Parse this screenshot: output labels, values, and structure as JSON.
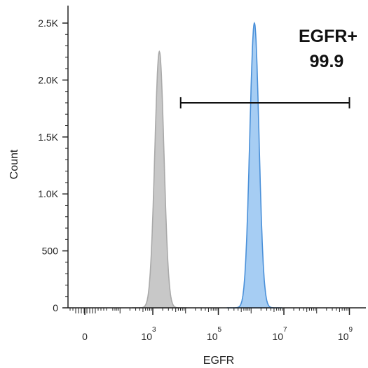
{
  "chart_data": {
    "type": "area",
    "xlabel": "EGFR",
    "ylabel": "Count",
    "ylim": [
      0,
      2600
    ],
    "xscale": "biexponential",
    "y_ticks": [
      {
        "value": 0,
        "label": "0"
      },
      {
        "value": 500,
        "label": "500"
      },
      {
        "value": 1000,
        "label": "1.0K"
      },
      {
        "value": 1500,
        "label": "1.5K"
      },
      {
        "value": 2000,
        "label": "2.0K"
      },
      {
        "value": 2500,
        "label": "2.5K"
      }
    ],
    "x_ticks": [
      {
        "label": "0",
        "base": "0",
        "exp": ""
      },
      {
        "label": "10^3",
        "base": "10",
        "exp": "3"
      },
      {
        "label": "10^5",
        "base": "10",
        "exp": "5"
      },
      {
        "label": "10^7",
        "base": "10",
        "exp": "7"
      },
      {
        "label": "10^9",
        "base": "10",
        "exp": "9"
      }
    ],
    "series": [
      {
        "peak_log10": 3.2,
        "peak_count": 2250,
        "width_log10": 0.14,
        "color": "#c8c8c8",
        "stroke": "#a9a9a9"
      },
      {
        "peak_log10": 6.1,
        "peak_count": 2500,
        "width_log10": 0.14,
        "color": "#a6cdf3",
        "stroke": "#4a90d9"
      }
    ],
    "gate": {
      "name": "EGFR+",
      "value": "99.9",
      "from_log10": 3.85,
      "to_log10": 9.0,
      "y_count": 1800
    }
  }
}
